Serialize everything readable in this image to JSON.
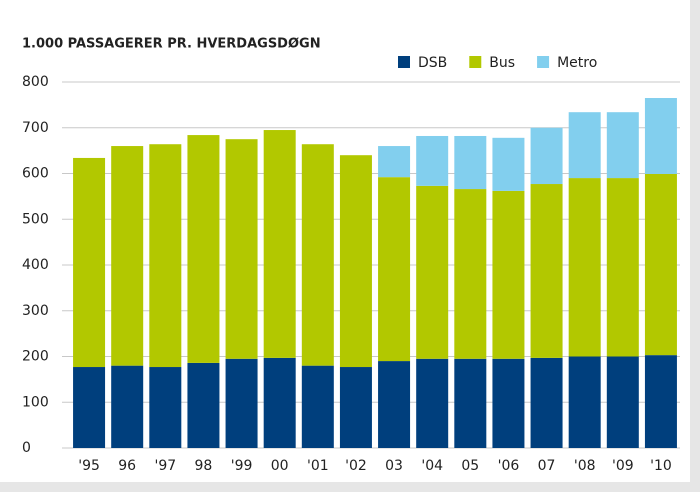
{
  "chart_data": {
    "type": "stacked-bar",
    "title": "1.000 PASSAGERER PR. HVERDAGSDØGN",
    "categories": [
      "'95",
      "96",
      "'97",
      "98",
      "'99",
      "00",
      "'01",
      "'02",
      "03",
      "'04",
      "05",
      "'06",
      "07",
      "'08",
      "'09",
      "'10"
    ],
    "series": [
      {
        "name": "DSB",
        "color": "#003f7d",
        "values": [
          177,
          180,
          177,
          186,
          195,
          197,
          180,
          177,
          190,
          195,
          195,
          195,
          197,
          200,
          200,
          203
        ]
      },
      {
        "name": "Bus",
        "color": "#b2c800",
        "values": [
          457,
          480,
          487,
          498,
          480,
          498,
          484,
          463,
          402,
          378,
          371,
          367,
          380,
          390,
          390,
          396
        ]
      },
      {
        "name": "Metro",
        "color": "#82cfee",
        "values": [
          null,
          null,
          null,
          null,
          null,
          null,
          null,
          null,
          68,
          109,
          116,
          116,
          123,
          144,
          144,
          166
        ]
      }
    ],
    "ylim": [
      0,
      800
    ],
    "yticks": [
      0,
      100,
      200,
      300,
      400,
      500,
      600,
      700,
      800
    ],
    "grid": true
  }
}
